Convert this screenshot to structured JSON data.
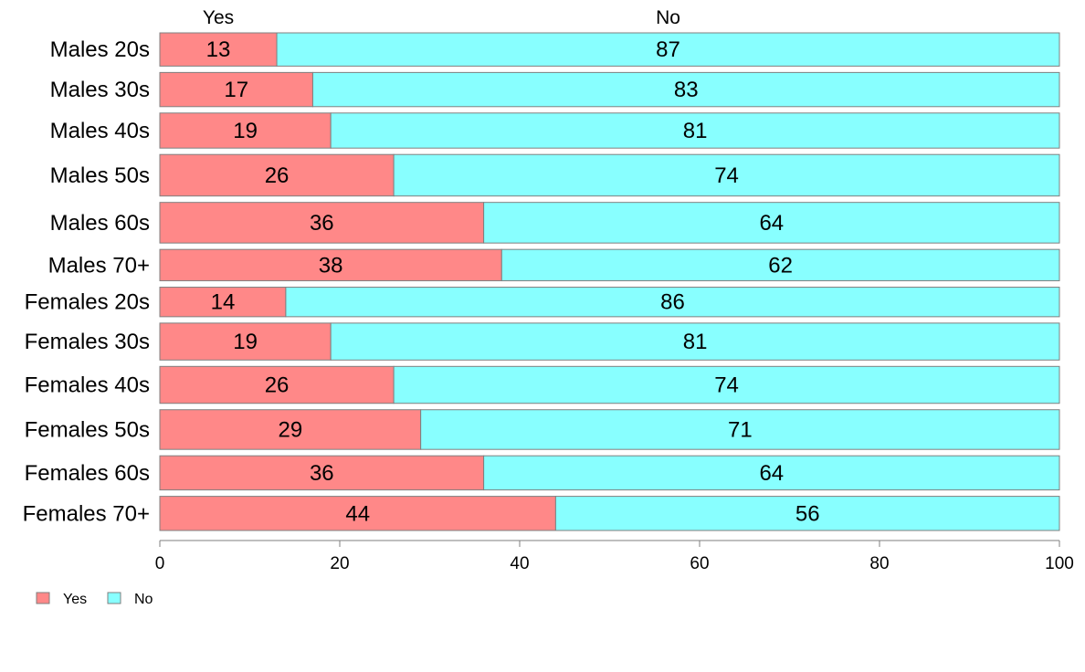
{
  "chart_data": {
    "type": "bar",
    "orientation": "horizontal",
    "stacked": true,
    "percent_stacked": true,
    "categories": [
      "Males 20s",
      "Males 30s",
      "Males 40s",
      "Males 50s",
      "Males 60s",
      "Males 70+",
      "Females 20s",
      "Females 30s",
      "Females 40s",
      "Females 50s",
      "Females 60s",
      "Females 70+"
    ],
    "series": [
      {
        "name": "Yes",
        "color": "#ff8888",
        "values": [
          13,
          17,
          19,
          26,
          36,
          38,
          14,
          19,
          26,
          29,
          36,
          44
        ]
      },
      {
        "name": "No",
        "color": "#88ffff",
        "values": [
          87,
          83,
          81,
          74,
          64,
          62,
          86,
          81,
          74,
          71,
          64,
          56
        ]
      }
    ],
    "row_weights": [
      36,
      37,
      38,
      45,
      44,
      34,
      32,
      40,
      40,
      43,
      37,
      37
    ],
    "xlim": [
      0,
      100
    ],
    "xticks": [
      0,
      20,
      40,
      60,
      80,
      100
    ],
    "top_labels": [
      "Yes",
      "No"
    ],
    "legend": {
      "position": "bottom-left",
      "entries": [
        "Yes",
        "No"
      ]
    },
    "grid": false,
    "title": "",
    "xlabel": "",
    "ylabel": ""
  }
}
